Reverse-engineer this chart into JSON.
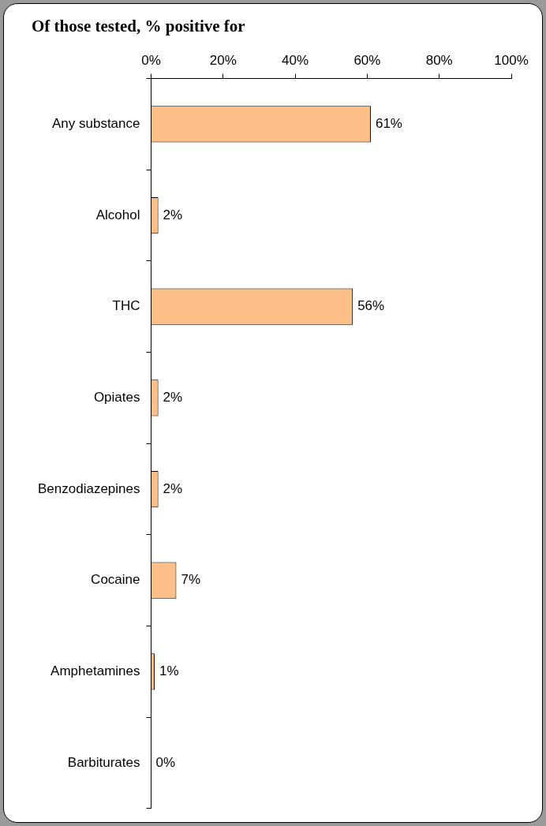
{
  "chart_data": {
    "type": "bar",
    "orientation": "horizontal",
    "title": "Of those tested, % positive for",
    "categories": [
      "Any substance",
      "Alcohol",
      "THC",
      "Opiates",
      "Benzodiazepines",
      "Cocaine",
      "Amphetamines",
      "Barbiturates"
    ],
    "values": [
      61,
      2,
      56,
      2,
      2,
      7,
      1,
      0
    ],
    "value_labels": [
      "61%",
      "2%",
      "56%",
      "2%",
      "2%",
      "7%",
      "1%",
      "0%"
    ],
    "color": "#fbbf87",
    "xlim": [
      0,
      100
    ],
    "xticks": [
      {
        "value": 0,
        "label": "0%"
      },
      {
        "value": 20,
        "label": "20%"
      },
      {
        "value": 40,
        "label": "40%"
      },
      {
        "value": 60,
        "label": "60%"
      },
      {
        "value": 80,
        "label": "80%"
      },
      {
        "value": 100,
        "label": "100%"
      }
    ],
    "grid": false,
    "legend": false
  }
}
